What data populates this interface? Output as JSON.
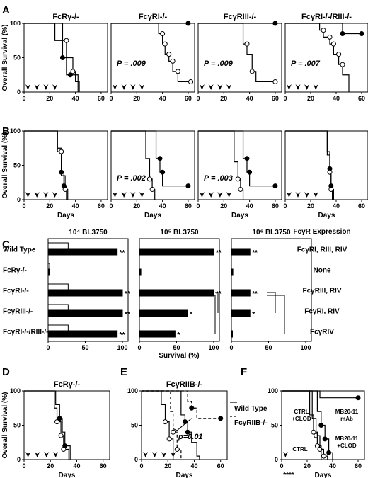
{
  "panel_letters": [
    "A",
    "B",
    "C",
    "D",
    "E",
    "F"
  ],
  "colors": {
    "ink": "#000000",
    "paper": "#ffffff"
  },
  "chart_data": [
    {
      "id": "A1",
      "type": "line",
      "panel": "A",
      "title": "FcRγ-/-",
      "xlabel": "",
      "ylabel": "Overall Survival (%)",
      "xlim": [
        0,
        65
      ],
      "ylim": [
        0,
        100
      ],
      "xticks": [
        0,
        20,
        40,
        60
      ],
      "yticks": [
        0,
        50,
        100
      ],
      "arrows_at_days": [
        3,
        10,
        17,
        24
      ],
      "p_value": "",
      "series": [
        {
          "marker": "filled",
          "x": [
            0,
            24,
            30,
            33,
            36,
            42
          ],
          "y": [
            100,
            75,
            50,
            25,
            25,
            0
          ],
          "markers_x": [
            30,
            36
          ],
          "markers_y": [
            50,
            25
          ]
        },
        {
          "marker": "open",
          "x": [
            0,
            30,
            33,
            38,
            40,
            43
          ],
          "y": [
            100,
            75,
            50,
            30,
            15,
            0
          ],
          "markers_x": [
            33,
            38
          ],
          "markers_y": [
            75,
            30
          ]
        }
      ]
    },
    {
      "id": "A2",
      "type": "line",
      "panel": "A",
      "title": "FcγRI-/-",
      "xlabel": "",
      "ylabel": "",
      "xlim": [
        0,
        65
      ],
      "ylim": [
        0,
        100
      ],
      "xticks": [
        0,
        20,
        40,
        60
      ],
      "yticks": [
        0,
        50,
        100
      ],
      "arrows_at_days": [
        3,
        10,
        17,
        24
      ],
      "p_value": "P = .009",
      "series": [
        {
          "marker": "filled",
          "x": [
            0,
            60
          ],
          "y": [
            100,
            100
          ],
          "markers_x": [
            60
          ],
          "markers_y": [
            100
          ]
        },
        {
          "marker": "open",
          "x": [
            0,
            37,
            40,
            42,
            45,
            48,
            52,
            57,
            62
          ],
          "y": [
            100,
            85,
            70,
            55,
            45,
            30,
            15,
            15,
            15
          ],
          "markers_x": [
            40,
            42,
            45,
            48,
            52,
            62
          ],
          "markers_y": [
            85,
            70,
            55,
            45,
            30,
            15
          ]
        }
      ]
    },
    {
      "id": "A3",
      "type": "line",
      "panel": "A",
      "title": "FcγRIII-/-",
      "xlabel": "",
      "ylabel": "",
      "xlim": [
        0,
        65
      ],
      "ylim": [
        0,
        100
      ],
      "xticks": [
        0,
        20,
        40,
        60
      ],
      "yticks": [
        0,
        50,
        100
      ],
      "arrows_at_days": [
        3,
        10,
        17,
        24
      ],
      "p_value": "P = .009",
      "series": [
        {
          "marker": "filled",
          "x": [
            0,
            60
          ],
          "y": [
            100,
            100
          ],
          "markers_x": [
            60
          ],
          "markers_y": [
            100
          ]
        },
        {
          "marker": "open",
          "x": [
            0,
            35,
            38,
            42,
            45,
            60
          ],
          "y": [
            100,
            70,
            55,
            30,
            15,
            15
          ],
          "markers_x": [
            38,
            42,
            60
          ],
          "markers_y": [
            70,
            30,
            15
          ]
        }
      ]
    },
    {
      "id": "A4",
      "type": "line",
      "panel": "A",
      "title": "FcγRI-/-/RIII-/-",
      "xlabel": "",
      "ylabel": "",
      "xlim": [
        0,
        65
      ],
      "ylim": [
        0,
        100
      ],
      "xticks": [
        0,
        20,
        40,
        60
      ],
      "yticks": [
        0,
        50,
        100
      ],
      "arrows_at_days": [
        3,
        10,
        17,
        24
      ],
      "p_value": "P = .007",
      "series": [
        {
          "marker": "filled",
          "x": [
            0,
            40,
            45,
            60
          ],
          "y": [
            100,
            100,
            85,
            85
          ],
          "markers_x": [
            45,
            60
          ],
          "markers_y": [
            85,
            85
          ]
        },
        {
          "marker": "open",
          "x": [
            0,
            27,
            30,
            35,
            38,
            42,
            45,
            50
          ],
          "y": [
            100,
            90,
            80,
            70,
            55,
            40,
            25,
            0
          ],
          "markers_x": [
            30,
            35,
            38,
            42,
            45
          ],
          "markers_y": [
            90,
            80,
            70,
            55,
            40
          ]
        }
      ]
    },
    {
      "id": "B1",
      "type": "line",
      "panel": "B",
      "title": "",
      "xlabel": "Days",
      "ylabel": "Overall Survival (%)",
      "xlim": [
        0,
        65
      ],
      "ylim": [
        0,
        100
      ],
      "xticks": [
        0,
        20,
        40,
        60
      ],
      "yticks": [
        0,
        50,
        100
      ],
      "arrows_at_days": [
        3,
        10,
        17,
        24
      ],
      "p_value": "",
      "series": [
        {
          "marker": "filled",
          "x": [
            0,
            26,
            29,
            31,
            33
          ],
          "y": [
            100,
            75,
            40,
            20,
            0
          ],
          "markers_x": [
            29,
            31
          ],
          "markers_y": [
            40,
            20
          ]
        },
        {
          "marker": "open",
          "x": [
            0,
            26,
            29,
            32,
            34
          ],
          "y": [
            100,
            70,
            35,
            15,
            0
          ],
          "markers_x": [
            29,
            32
          ],
          "markers_y": [
            70,
            15
          ]
        }
      ]
    },
    {
      "id": "B2",
      "type": "line",
      "panel": "B",
      "title": "",
      "xlabel": "Days",
      "ylabel": "",
      "xlim": [
        0,
        65
      ],
      "ylim": [
        0,
        100
      ],
      "xticks": [
        0,
        20,
        40,
        60
      ],
      "yticks": [
        0,
        50,
        100
      ],
      "arrows_at_days": [
        3,
        10,
        17,
        24
      ],
      "p_value": "P = .002",
      "series": [
        {
          "marker": "filled",
          "x": [
            0,
            35,
            38,
            40,
            60
          ],
          "y": [
            100,
            60,
            40,
            20,
            20
          ],
          "markers_x": [
            38,
            40,
            60
          ],
          "markers_y": [
            60,
            40,
            20
          ]
        },
        {
          "marker": "open",
          "x": [
            0,
            27,
            30,
            32,
            34
          ],
          "y": [
            100,
            60,
            30,
            15,
            0
          ],
          "markers_x": [
            30,
            32
          ],
          "markers_y": [
            30,
            15
          ]
        }
      ]
    },
    {
      "id": "B3",
      "type": "line",
      "panel": "B",
      "title": "",
      "xlabel": "Days",
      "ylabel": "",
      "xlim": [
        0,
        65
      ],
      "ylim": [
        0,
        100
      ],
      "xticks": [
        0,
        20,
        40,
        60
      ],
      "yticks": [
        0,
        50,
        100
      ],
      "arrows_at_days": [
        3,
        10,
        17,
        24
      ],
      "p_value": "P = .003",
      "series": [
        {
          "marker": "filled",
          "x": [
            0,
            35,
            38,
            40,
            60
          ],
          "y": [
            100,
            60,
            40,
            20,
            20
          ],
          "markers_x": [
            38,
            40,
            60
          ],
          "markers_y": [
            60,
            40,
            20
          ]
        },
        {
          "marker": "open",
          "x": [
            0,
            28,
            31,
            33,
            35
          ],
          "y": [
            100,
            55,
            30,
            15,
            0
          ],
          "markers_x": [
            31,
            33
          ],
          "markers_y": [
            30,
            15
          ]
        }
      ]
    },
    {
      "id": "B4",
      "type": "line",
      "panel": "B",
      "title": "",
      "xlabel": "Days",
      "ylabel": "",
      "xlim": [
        0,
        65
      ],
      "ylim": [
        0,
        100
      ],
      "xticks": [
        0,
        20,
        40,
        60
      ],
      "yticks": [
        0,
        50,
        100
      ],
      "arrows_at_days": [
        3,
        10,
        17,
        24
      ],
      "p_value": "",
      "series": [
        {
          "marker": "filled",
          "x": [
            0,
            33,
            35,
            36,
            37
          ],
          "y": [
            100,
            70,
            45,
            20,
            0
          ],
          "markers_x": [
            35,
            36
          ],
          "markers_y": [
            45,
            20
          ]
        },
        {
          "marker": "open",
          "x": [
            0,
            33,
            35,
            36,
            38
          ],
          "y": [
            100,
            65,
            40,
            15,
            0
          ],
          "markers_x": [
            35,
            36
          ],
          "markers_y": [
            40,
            15
          ]
        }
      ]
    },
    {
      "id": "C",
      "type": "bar",
      "panel": "C",
      "xlabel": "Survival (%)",
      "xlim": [
        0,
        100
      ],
      "xticks": [
        0,
        50,
        100
      ],
      "categories": [
        "Wild Type",
        "FcRγ-/-",
        "FcγRI-/-",
        "FcγRIII-/-",
        "FcγRI-/-/RIII-/-"
      ],
      "expression_header": "FcγR Expression",
      "expression": [
        "FcγRI, RIII, RIV",
        "None",
        "FcγRIII, RIV",
        "FcγRI, RIV",
        "FcγRIV"
      ],
      "subpanels": [
        {
          "title": "10⁴ BL3750",
          "treated": [
            93,
            2,
            100,
            100,
            93
          ],
          "control": [
            27,
            2,
            27,
            27,
            27
          ],
          "stars": [
            "**",
            "",
            "**",
            "**",
            "**"
          ]
        },
        {
          "title": "10⁵ BL3750",
          "treated": [
            100,
            2,
            100,
            65,
            48
          ],
          "control": [
            0,
            0,
            0,
            0,
            0
          ],
          "stars": [
            "**",
            "",
            "**",
            "*",
            "*"
          ]
        },
        {
          "title": "10⁶ BL3750",
          "treated": [
            25,
            2,
            25,
            25,
            0
          ],
          "control": [
            0,
            0,
            0,
            0,
            0
          ],
          "stars": [
            "**",
            "",
            "**",
            "*",
            ""
          ]
        }
      ]
    },
    {
      "id": "D",
      "type": "line",
      "panel": "D",
      "title": "FcRγ-/-",
      "xlabel": "Days",
      "ylabel": "Overall Survival (%)",
      "xlim": [
        0,
        65
      ],
      "ylim": [
        0,
        100
      ],
      "xticks": [
        0,
        20,
        40,
        60
      ],
      "yticks": [
        0,
        50,
        100
      ],
      "arrows_at_days": [
        3,
        10,
        17,
        24
      ],
      "p_value": "",
      "series": [
        {
          "marker": "filled",
          "x": [
            0,
            24,
            27,
            29,
            31,
            33,
            35
          ],
          "y": [
            100,
            80,
            60,
            40,
            20,
            20,
            0
          ],
          "markers_x": [
            27,
            31
          ],
          "markers_y": [
            60,
            20
          ]
        },
        {
          "marker": "open",
          "x": [
            0,
            23,
            25,
            28,
            30,
            34
          ],
          "y": [
            100,
            75,
            55,
            35,
            15,
            0
          ],
          "markers_x": [
            25,
            28,
            30
          ],
          "markers_y": [
            55,
            35,
            15
          ]
        }
      ]
    },
    {
      "id": "E",
      "type": "line",
      "panel": "E",
      "title": "FcγRIIB-/-",
      "xlabel": "Days",
      "ylabel": "",
      "xlim": [
        0,
        65
      ],
      "ylim": [
        0,
        100
      ],
      "xticks": [
        0,
        20,
        40,
        60
      ],
      "yticks": [
        0,
        50,
        100
      ],
      "arrows_at_days": [
        3,
        10,
        17,
        24
      ],
      "p_value": "p=0.01",
      "legend": [
        {
          "label": "Wild Type",
          "style": "solid"
        },
        {
          "label": "FcγRIIB-/-",
          "style": "dashed"
        }
      ],
      "series": [
        {
          "marker": "filled",
          "dash": false,
          "x": [
            0,
            30,
            33,
            35,
            38,
            42,
            44
          ],
          "y": [
            100,
            65,
            55,
            40,
            25,
            5,
            0
          ],
          "markers_x": [
            33,
            35
          ],
          "markers_y": [
            55,
            40
          ]
        },
        {
          "marker": "open",
          "dash": false,
          "x": [
            0,
            15,
            18,
            21,
            24
          ],
          "y": [
            100,
            80,
            55,
            30,
            0
          ],
          "markers_x": [
            18,
            21
          ],
          "markers_y": [
            55,
            30
          ]
        },
        {
          "marker": "filled",
          "dash": true,
          "x": [
            0,
            35,
            38,
            42,
            60
          ],
          "y": [
            100,
            85,
            75,
            60,
            60
          ],
          "markers_x": [
            38,
            60
          ],
          "markers_y": [
            75,
            60
          ]
        },
        {
          "marker": "open",
          "dash": true,
          "x": [
            0,
            22,
            24,
            27,
            30
          ],
          "y": [
            100,
            70,
            40,
            15,
            0
          ],
          "markers_x": [
            24,
            27
          ],
          "markers_y": [
            40,
            15
          ]
        }
      ]
    },
    {
      "id": "F",
      "type": "line",
      "panel": "F",
      "title": "",
      "xlabel": "Days",
      "ylabel": "",
      "xlim": [
        0,
        65
      ],
      "ylim": [
        0,
        100
      ],
      "xticks": [
        0,
        20,
        40,
        60
      ],
      "yticks": [
        0,
        50,
        100
      ],
      "arrows_at_days": [
        3
      ],
      "stars_below": "****",
      "labels": [
        "CTRL +CLOD",
        "MB20-11 mAb",
        "CTRL",
        "MB20-11 +CLOD"
      ],
      "series": [
        {
          "marker": "filled",
          "x": [
            0,
            30,
            60
          ],
          "y": [
            100,
            90,
            90
          ],
          "markers_x": [
            60
          ],
          "markers_y": [
            90
          ]
        },
        {
          "marker": "open",
          "x": [
            0,
            24,
            27,
            30,
            33,
            36
          ],
          "y": [
            100,
            60,
            35,
            15,
            5,
            0
          ],
          "markers_x": [
            27,
            30,
            33
          ],
          "markers_y": [
            35,
            15,
            5
          ]
        },
        {
          "marker": "filled",
          "x": [
            0,
            28,
            31,
            34,
            37,
            40
          ],
          "y": [
            100,
            70,
            50,
            30,
            10,
            0
          ],
          "markers_x": [
            31,
            34,
            37
          ],
          "markers_y": [
            50,
            30,
            10
          ]
        },
        {
          "marker": "open",
          "x": [
            0,
            22,
            25,
            28,
            31
          ],
          "y": [
            100,
            65,
            40,
            20,
            0
          ],
          "markers_x": [
            25,
            28
          ],
          "markers_y": [
            40,
            20
          ]
        }
      ]
    }
  ]
}
